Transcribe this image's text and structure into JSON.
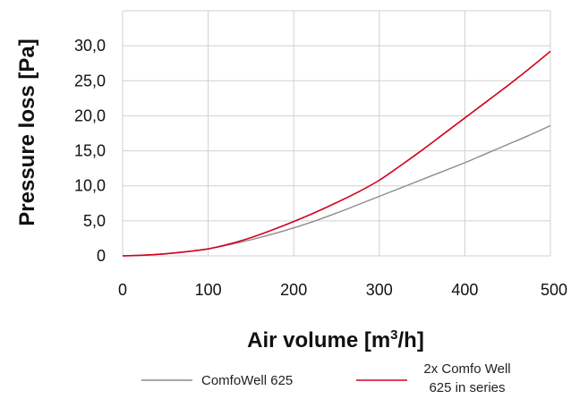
{
  "chart_data": {
    "type": "line",
    "xlabel_main": "Air volume [m",
    "xlabel_sup": "3",
    "xlabel_tail": "/h]",
    "ylabel": "Pressure loss [Pa]",
    "xlim": [
      0,
      500
    ],
    "ylim": [
      0,
      35
    ],
    "x_ticks": [
      0,
      100,
      200,
      300,
      400,
      500
    ],
    "x_tick_labels": [
      "0",
      "100",
      "200",
      "300",
      "400",
      "500"
    ],
    "y_ticks": [
      0,
      5,
      10,
      15,
      20,
      25,
      30
    ],
    "y_tick_labels": [
      "0",
      "5,0",
      "10,0",
      "15,0",
      "20,0",
      "25,0",
      "30,0"
    ],
    "grid": true,
    "legend_position": "bottom",
    "series": [
      {
        "name": "ComfoWell 625",
        "color": "#8c8c8c",
        "x": [
          0,
          25,
          50,
          75,
          100,
          125,
          150,
          175,
          200,
          225,
          250,
          275,
          300,
          325,
          350,
          375,
          400,
          425,
          450,
          475,
          500
        ],
        "y": [
          0,
          0.1,
          0.3,
          0.6,
          1.0,
          1.6,
          2.3,
          3.1,
          4.0,
          5.0,
          6.1,
          7.3,
          8.5,
          9.7,
          10.9,
          12.1,
          13.3,
          14.6,
          15.9,
          17.2,
          18.6
        ]
      },
      {
        "name_lines": [
          "2x Comfo Well",
          "625 in series"
        ],
        "color": "#d4001e",
        "x": [
          0,
          25,
          50,
          75,
          100,
          125,
          150,
          175,
          200,
          225,
          250,
          275,
          300,
          325,
          350,
          375,
          400,
          425,
          450,
          475,
          500
        ],
        "y": [
          0,
          0.1,
          0.3,
          0.6,
          1.0,
          1.7,
          2.6,
          3.7,
          4.9,
          6.2,
          7.6,
          9.1,
          10.8,
          12.9,
          15.1,
          17.4,
          19.7,
          22.0,
          24.3,
          26.7,
          29.2
        ]
      }
    ]
  }
}
